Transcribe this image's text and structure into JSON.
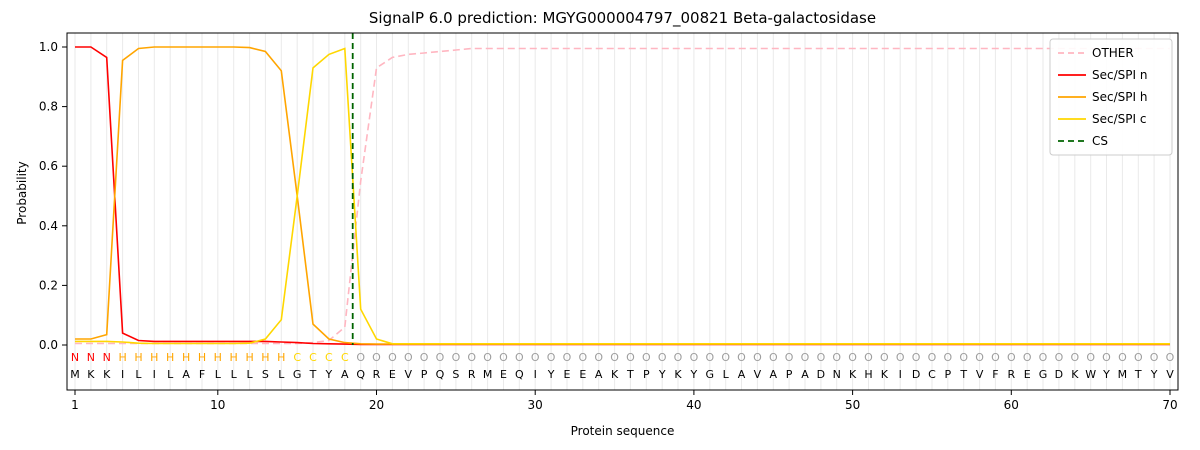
{
  "figure": {
    "title": "SignalP 6.0 prediction: MGYG000004797_00821 Beta-galactosidase",
    "xlabel": "Protein sequence",
    "ylabel": "Probability"
  },
  "chart_data": {
    "type": "line",
    "title": "SignalP 6.0 prediction: MGYG000004797_00821 Beta-galactosidase",
    "xlabel": "Protein sequence",
    "ylabel": "Probability",
    "xlim": [
      0,
      71
    ],
    "ylim": [
      0,
      1.05
    ],
    "x_ticks": [
      1,
      10,
      20,
      30,
      40,
      50,
      60,
      70
    ],
    "y_ticks": [
      0,
      0.2,
      0.4,
      0.6,
      0.8,
      1
    ],
    "grid": "light vertical line at every residue position",
    "legend_position": "upper right",
    "sequence": "MKKILILAFLLLSLGTYAQREVPQSRMEQIYEEAKTPYKYGLAVAPADNKHKIDCPTVFREGDKWYMTYV",
    "annotation_regions": [
      {
        "letter": "N",
        "start": 1,
        "end": 3,
        "color": "#ff0000"
      },
      {
        "letter": "H",
        "start": 4,
        "end": 14,
        "color": "#ffa500"
      },
      {
        "letter": "C",
        "start": 15,
        "end": 18,
        "color": "#ffd700"
      },
      {
        "letter": "O",
        "start": 19,
        "end": 70,
        "color": "#9e9e9e"
      }
    ],
    "series": [
      {
        "name": "OTHER",
        "color": "#ffb6c1",
        "dashed": true,
        "values": [
          0.005,
          0.005,
          0.005,
          0.005,
          0.005,
          0.005,
          0.005,
          0.005,
          0.005,
          0.005,
          0.005,
          0.005,
          0.005,
          0.005,
          0.005,
          0.008,
          0.015,
          0.06,
          0.55,
          0.93,
          0.965,
          0.975,
          0.98,
          0.985,
          0.99,
          0.995,
          0.995,
          0.995,
          0.995,
          0.995,
          0.995,
          0.995,
          0.995,
          0.995,
          0.995,
          0.995,
          0.995,
          0.995,
          0.995,
          0.995,
          0.995,
          0.995,
          0.995,
          0.995,
          0.995,
          0.995,
          0.995,
          0.995,
          0.995,
          0.995,
          0.995,
          0.995,
          0.995,
          0.995,
          0.995,
          0.995,
          0.995,
          0.995,
          0.995,
          0.995,
          0.995,
          0.995,
          0.995,
          0.995,
          0.995,
          0.995,
          0.995,
          0.995,
          0.995,
          0.995
        ]
      },
      {
        "name": "Sec/SPI n",
        "color": "#ff0000",
        "dashed": false,
        "values": [
          1.0,
          1.0,
          0.965,
          0.04,
          0.015,
          0.012,
          0.012,
          0.012,
          0.012,
          0.012,
          0.012,
          0.012,
          0.012,
          0.01,
          0.008,
          0.005,
          0.004,
          0.003,
          0.002,
          0.002,
          0.002,
          0.002,
          0.002,
          0.002,
          0.002,
          0.002,
          0.002,
          0.002,
          0.002,
          0.002,
          0.002,
          0.002,
          0.002,
          0.002,
          0.002,
          0.002,
          0.002,
          0.002,
          0.002,
          0.002,
          0.002,
          0.002,
          0.002,
          0.002,
          0.002,
          0.002,
          0.002,
          0.002,
          0.002,
          0.002,
          0.002,
          0.002,
          0.002,
          0.002,
          0.002,
          0.002,
          0.002,
          0.002,
          0.002,
          0.002,
          0.002,
          0.002,
          0.002,
          0.002,
          0.002,
          0.002,
          0.002,
          0.002,
          0.002,
          0.002
        ]
      },
      {
        "name": "Sec/SPI h",
        "color": "#ffa500",
        "dashed": false,
        "values": [
          0.02,
          0.02,
          0.035,
          0.955,
          0.995,
          1.0,
          1.0,
          1.0,
          1.0,
          1.0,
          1.0,
          0.998,
          0.985,
          0.92,
          0.5,
          0.07,
          0.02,
          0.008,
          0.004,
          0.003,
          0.003,
          0.003,
          0.003,
          0.003,
          0.003,
          0.003,
          0.003,
          0.003,
          0.003,
          0.003,
          0.003,
          0.003,
          0.003,
          0.003,
          0.003,
          0.003,
          0.003,
          0.003,
          0.003,
          0.003,
          0.003,
          0.003,
          0.003,
          0.003,
          0.003,
          0.003,
          0.003,
          0.003,
          0.003,
          0.003,
          0.003,
          0.003,
          0.003,
          0.003,
          0.003,
          0.003,
          0.003,
          0.003,
          0.003,
          0.003,
          0.003,
          0.003,
          0.003,
          0.003,
          0.003,
          0.003,
          0.003,
          0.003,
          0.003,
          0.003
        ]
      },
      {
        "name": "Sec/SPI c",
        "color": "#ffd700",
        "dashed": false,
        "values": [
          0.012,
          0.012,
          0.012,
          0.01,
          0.006,
          0.005,
          0.005,
          0.005,
          0.005,
          0.005,
          0.005,
          0.006,
          0.02,
          0.085,
          0.5,
          0.93,
          0.975,
          0.995,
          0.12,
          0.02,
          0.004,
          0.004,
          0.004,
          0.004,
          0.004,
          0.004,
          0.004,
          0.004,
          0.004,
          0.004,
          0.004,
          0.004,
          0.004,
          0.004,
          0.004,
          0.004,
          0.004,
          0.004,
          0.004,
          0.004,
          0.004,
          0.004,
          0.004,
          0.004,
          0.004,
          0.004,
          0.004,
          0.004,
          0.004,
          0.004,
          0.004,
          0.004,
          0.004,
          0.004,
          0.004,
          0.004,
          0.004,
          0.004,
          0.004,
          0.004,
          0.004,
          0.004,
          0.004,
          0.004,
          0.004,
          0.004,
          0.004,
          0.004,
          0.004,
          0.004
        ]
      }
    ],
    "cs_line": {
      "name": "CS",
      "position": 18.5,
      "color": "#006400",
      "dashed": true
    },
    "legend_entries": [
      "OTHER",
      "Sec/SPI n",
      "Sec/SPI h",
      "Sec/SPI c",
      "CS"
    ]
  }
}
